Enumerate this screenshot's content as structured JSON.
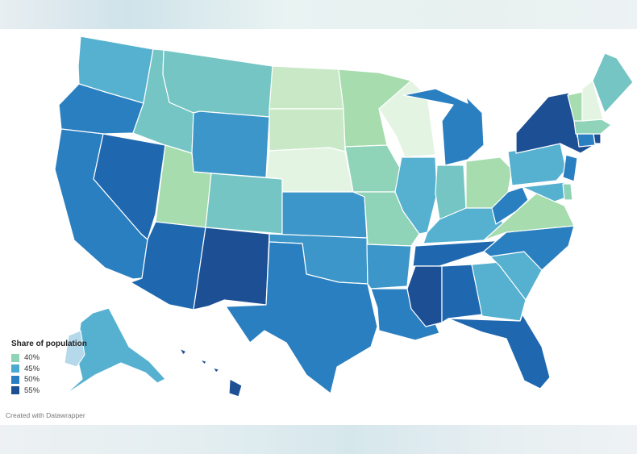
{
  "legend": {
    "title": "Share of population",
    "items": [
      {
        "label": "40%",
        "color": "#8fd3b8"
      },
      {
        "label": "45%",
        "color": "#4aaad0"
      },
      {
        "label": "50%",
        "color": "#2a7fc0"
      },
      {
        "label": "55%",
        "color": "#1d4f94"
      }
    ]
  },
  "credit": "Created with Datawrapper",
  "colors": {
    "very_light": "#e3f4e3",
    "light_green": "#c8e8c6",
    "green_yellow": "#a6dcae",
    "mint": "#8fd3b8",
    "teal": "#74c5c4",
    "light_blue": "#56b1d1",
    "mid_blue": "#3d96c9",
    "blue": "#2a7fc0",
    "strong_blue": "#1f68b0",
    "navy": "#1d4f94",
    "pale_blue": "#b5d9ea"
  },
  "states": [
    {
      "id": "WA",
      "tier": "light_blue"
    },
    {
      "id": "OR",
      "tier": "blue"
    },
    {
      "id": "CA",
      "tier": "blue"
    },
    {
      "id": "NV",
      "tier": "strong_blue"
    },
    {
      "id": "ID",
      "tier": "teal"
    },
    {
      "id": "MT",
      "tier": "teal"
    },
    {
      "id": "WY",
      "tier": "mid_blue"
    },
    {
      "id": "UT",
      "tier": "green_yellow"
    },
    {
      "id": "AZ",
      "tier": "strong_blue"
    },
    {
      "id": "CO",
      "tier": "teal"
    },
    {
      "id": "NM",
      "tier": "navy"
    },
    {
      "id": "ND",
      "tier": "light_green"
    },
    {
      "id": "SD",
      "tier": "light_green"
    },
    {
      "id": "NE",
      "tier": "very_light"
    },
    {
      "id": "KS",
      "tier": "mid_blue"
    },
    {
      "id": "OK",
      "tier": "mid_blue"
    },
    {
      "id": "TX",
      "tier": "blue"
    },
    {
      "id": "MN",
      "tier": "green_yellow"
    },
    {
      "id": "IA",
      "tier": "mint"
    },
    {
      "id": "MO",
      "tier": "mint"
    },
    {
      "id": "AR",
      "tier": "mid_blue"
    },
    {
      "id": "LA",
      "tier": "blue"
    },
    {
      "id": "WI",
      "tier": "very_light"
    },
    {
      "id": "IL",
      "tier": "light_blue"
    },
    {
      "id": "MI",
      "tier": "blue"
    },
    {
      "id": "IN",
      "tier": "teal"
    },
    {
      "id": "OH",
      "tier": "green_yellow"
    },
    {
      "id": "KY",
      "tier": "light_blue"
    },
    {
      "id": "TN",
      "tier": "strong_blue"
    },
    {
      "id": "MS",
      "tier": "navy"
    },
    {
      "id": "AL",
      "tier": "strong_blue"
    },
    {
      "id": "GA",
      "tier": "light_blue"
    },
    {
      "id": "FL",
      "tier": "strong_blue"
    },
    {
      "id": "SC",
      "tier": "light_blue"
    },
    {
      "id": "NC",
      "tier": "blue"
    },
    {
      "id": "VA",
      "tier": "green_yellow"
    },
    {
      "id": "WV",
      "tier": "blue"
    },
    {
      "id": "PA",
      "tier": "light_blue"
    },
    {
      "id": "NY",
      "tier": "navy"
    },
    {
      "id": "VT",
      "tier": "green_yellow"
    },
    {
      "id": "NH",
      "tier": "very_light"
    },
    {
      "id": "ME",
      "tier": "teal"
    },
    {
      "id": "MA",
      "tier": "mint"
    },
    {
      "id": "CT",
      "tier": "blue"
    },
    {
      "id": "RI",
      "tier": "navy"
    },
    {
      "id": "NJ",
      "tier": "blue"
    },
    {
      "id": "DE",
      "tier": "mint"
    },
    {
      "id": "MD",
      "tier": "light_blue"
    },
    {
      "id": "AK",
      "tier": "light_blue"
    },
    {
      "id": "HI",
      "tier": "navy"
    }
  ]
}
